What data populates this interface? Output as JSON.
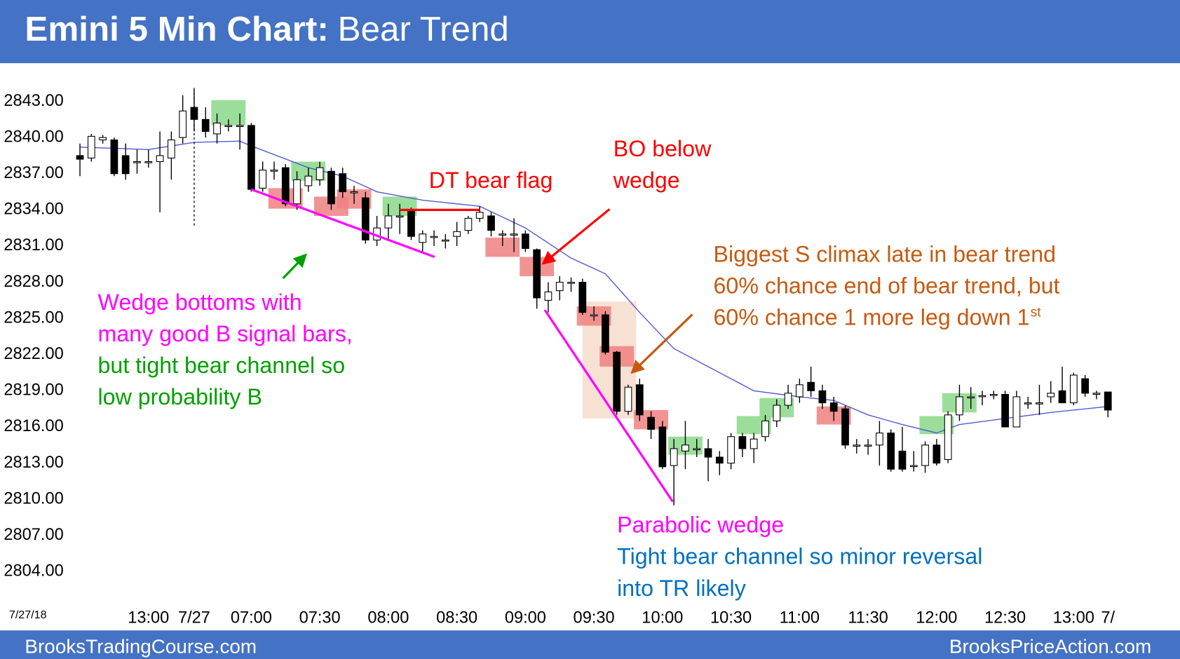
{
  "header": {
    "title_bold": "Emini 5 Min Chart:",
    "title_rest": "Bear Trend"
  },
  "footer": {
    "left": "BrooksTradingCourse.com",
    "right": "BrooksPriceAction.com"
  },
  "chart_data": {
    "type": "candlestick",
    "date_label": "7/27/18",
    "up_color": "#ffffff",
    "down_color": "#000000",
    "wick_color": "#000000",
    "xlim": [
      -7,
      91.5
    ],
    "ylim": [
      2801.5,
      2846.1
    ],
    "grid": false,
    "yticks": [
      {
        "value": 2804,
        "label": "2804.00"
      },
      {
        "value": 2807,
        "label": "2807.00"
      },
      {
        "value": 2810,
        "label": "2810.00"
      },
      {
        "value": 2813,
        "label": "2813.00"
      },
      {
        "value": 2816,
        "label": "2816.00"
      },
      {
        "value": 2819,
        "label": "2819.00"
      },
      {
        "value": 2822,
        "label": "2822.00"
      },
      {
        "value": 2825,
        "label": "2825.00"
      },
      {
        "value": 2828,
        "label": "2828.00"
      },
      {
        "value": 2831,
        "label": "2831.00"
      },
      {
        "value": 2834,
        "label": "2834.00"
      },
      {
        "value": 2837,
        "label": "2837.00"
      },
      {
        "value": 2840,
        "label": "2840.00"
      },
      {
        "value": 2843,
        "label": "2843.00"
      }
    ],
    "xticks": [
      {
        "value": 6,
        "label": "13:00"
      },
      {
        "value": 10,
        "label": "7/27"
      },
      {
        "value": 15,
        "label": "07:00"
      },
      {
        "value": 21,
        "label": "07:30"
      },
      {
        "value": 27,
        "label": "08:00"
      },
      {
        "value": 33,
        "label": "08:30"
      },
      {
        "value": 39,
        "label": "09:00"
      },
      {
        "value": 45,
        "label": "09:30"
      },
      {
        "value": 51,
        "label": "10:00"
      },
      {
        "value": 57,
        "label": "10:30"
      },
      {
        "value": 63,
        "label": "11:00"
      },
      {
        "value": 69,
        "label": "11:30"
      },
      {
        "value": 75,
        "label": "12:00"
      },
      {
        "value": 81,
        "label": "12:30"
      },
      {
        "value": 87,
        "label": "13:00"
      },
      {
        "value": 90,
        "label": "7/"
      }
    ],
    "candles": {
      "x": [
        0,
        1,
        2,
        3,
        4,
        5,
        6,
        7,
        8,
        9,
        10,
        11,
        12,
        13,
        14,
        15,
        16,
        17,
        18,
        19,
        20,
        21,
        22,
        23,
        24,
        25,
        26,
        27,
        28,
        29,
        30,
        31,
        32,
        33,
        34,
        35,
        36,
        37,
        38,
        39,
        40,
        41,
        42,
        43,
        44,
        45,
        46,
        47,
        48,
        49,
        50,
        51,
        52,
        53,
        54,
        55,
        56,
        57,
        58,
        59,
        60,
        61,
        62,
        63,
        64,
        65,
        66,
        67,
        68,
        69,
        70,
        71,
        72,
        73,
        74,
        75,
        76,
        77,
        78,
        79,
        80,
        81,
        82,
        83,
        84,
        85,
        86,
        87,
        88,
        89,
        90
      ],
      "open": [
        2838.5,
        2838.3,
        2839.8,
        2839.8,
        2838.5,
        2838,
        2838,
        2838,
        2838.3,
        2840,
        2842.5,
        2841.5,
        2840.3,
        2841,
        2841,
        2841,
        2835.8,
        2837.3,
        2837.5,
        2834.5,
        2836,
        2836.5,
        2837.2,
        2837,
        2835.5,
        2835,
        2831.5,
        2832.5,
        2833.5,
        2834,
        2831.3,
        2831.8,
        2831.5,
        2831.8,
        2832.3,
        2833.3,
        2833.5,
        2832,
        2832,
        2832,
        2830.7,
        2826.5,
        2827.3,
        2828,
        2828,
        2825.3,
        2825.3,
        2822.2,
        2817.3,
        2819.5,
        2816.8,
        2816,
        2812.8,
        2814,
        2814.2,
        2814.2,
        2813.5,
        2813,
        2815.2,
        2814.2,
        2815.2,
        2816.5,
        2817.8,
        2818.5,
        2819.7,
        2819,
        2818,
        2817.5,
        2814.5,
        2814.5,
        2814.5,
        2815.5,
        2814,
        2812.8,
        2812.8,
        2814.5,
        2813.3,
        2817,
        2818.5,
        2818.6,
        2818.7,
        2818.7,
        2816,
        2818,
        2818,
        2818.5,
        2819,
        2818,
        2820,
        2818.8,
        2818.9
      ],
      "high": [
        2839.5,
        2840.3,
        2840.2,
        2840,
        2839.5,
        2839,
        2839,
        2840.5,
        2840.5,
        2843.5,
        2844,
        2842.5,
        2842,
        2841.5,
        2842,
        2841.2,
        2838,
        2838,
        2837.8,
        2837.2,
        2837.5,
        2838,
        2837.5,
        2837.5,
        2836,
        2835.5,
        2833.5,
        2834.5,
        2834.5,
        2834.2,
        2832.3,
        2832.3,
        2832,
        2833,
        2833.5,
        2834.3,
        2833.8,
        2832.3,
        2833.3,
        2832.3,
        2830.8,
        2828,
        2828.5,
        2828.4,
        2828.3,
        2826,
        2825.6,
        2822.3,
        2819.5,
        2820,
        2817.3,
        2816.5,
        2815,
        2816.5,
        2815,
        2815,
        2814,
        2815.5,
        2815.5,
        2815.5,
        2817,
        2818.3,
        2819.5,
        2820,
        2821,
        2819.5,
        2818.5,
        2817.8,
        2815,
        2815,
        2816.5,
        2815.8,
        2816,
        2814,
        2814.8,
        2815,
        2817.3,
        2819.5,
        2819.3,
        2819,
        2819,
        2819,
        2819,
        2818.5,
        2819.5,
        2819.8,
        2821,
        2820.5,
        2820.3,
        2819,
        2818.9
      ],
      "low": [
        2836.8,
        2838,
        2839.5,
        2836.8,
        2836.5,
        2837,
        2837.5,
        2833.8,
        2836.5,
        2839.5,
        2840.5,
        2840,
        2839.5,
        2840.5,
        2839,
        2835.5,
        2835.5,
        2836.5,
        2834.3,
        2834,
        2835.5,
        2836,
        2834,
        2835,
        2834.5,
        2831.2,
        2831,
        2831.5,
        2832,
        2831.5,
        2830.5,
        2831,
        2830.8,
        2831,
        2832,
        2833,
        2831.8,
        2831,
        2830.5,
        2830.5,
        2825.8,
        2825.5,
        2826.5,
        2827.2,
        2825.3,
        2824.8,
        2822,
        2817,
        2817,
        2816.5,
        2815,
        2812.5,
        2809.5,
        2812.5,
        2813.5,
        2811.5,
        2812,
        2812.5,
        2813.5,
        2813,
        2814.8,
        2816,
        2817.5,
        2818,
        2818.5,
        2817.5,
        2816.5,
        2814.2,
        2813.8,
        2813.7,
        2812.8,
        2812.3,
        2812.3,
        2812.3,
        2812.2,
        2812.8,
        2813,
        2816.5,
        2817.5,
        2817.8,
        2818.3,
        2816,
        2816,
        2817.5,
        2817,
        2818,
        2818,
        2817.8,
        2818.5,
        2818.3,
        2816.8
      ],
      "close": [
        2838.2,
        2840.1,
        2840.0,
        2837,
        2837,
        2838,
        2838,
        2838.5,
        2839.8,
        2842.2,
        2841.5,
        2840.5,
        2841.2,
        2841,
        2841,
        2835.7,
        2837.3,
        2837.3,
        2834.5,
        2836.5,
        2836.8,
        2837.5,
        2834.5,
        2835.5,
        2835.5,
        2831.5,
        2832.5,
        2833.5,
        2833.5,
        2831.8,
        2832,
        2831.8,
        2831.5,
        2832.2,
        2833.3,
        2833.8,
        2832.3,
        2832,
        2832,
        2830.8,
        2826.7,
        2827.2,
        2828,
        2828,
        2825.5,
        2825.3,
        2822.2,
        2817.3,
        2819.3,
        2817,
        2815.8,
        2812.7,
        2814.2,
        2814.5,
        2814.2,
        2813.5,
        2813,
        2815.2,
        2814.2,
        2815,
        2816.5,
        2817.8,
        2818.8,
        2819.5,
        2819,
        2818,
        2817.3,
        2814.5,
        2814.5,
        2814.5,
        2815.5,
        2812.5,
        2812.5,
        2812.8,
        2814.5,
        2813,
        2817,
        2818.5,
        2818.5,
        2818.6,
        2818.7,
        2816,
        2818.5,
        2818,
        2818,
        2818.8,
        2818,
        2820.3,
        2818.8,
        2818.8,
        2817.4
      ]
    },
    "moving_average": {
      "color": "#4f5bd5",
      "x": [
        0,
        6,
        10,
        14,
        15,
        20,
        23,
        26,
        30,
        35,
        39,
        43,
        46,
        49,
        52,
        56,
        59,
        63,
        66,
        69,
        72,
        75,
        77,
        81,
        85,
        90
      ],
      "values": [
        2839.2,
        2839,
        2839.6,
        2839.7,
        2839.3,
        2837.5,
        2836.8,
        2835.5,
        2834.8,
        2834.3,
        2832.5,
        2830,
        2828.7,
        2825.5,
        2822.5,
        2820.5,
        2819,
        2818.5,
        2818.2,
        2817,
        2816.2,
        2815.5,
        2816.2,
        2816.7,
        2817.2,
        2817.7
      ]
    },
    "overlays": [
      {
        "type": "box",
        "x": [
          44.5,
          48.2
        ],
        "y": [
          2816.7,
          2826.4
        ],
        "color": "#f4dccb"
      },
      {
        "type": "box",
        "x": [
          12,
          14
        ],
        "y": [
          2841,
          2843.1
        ],
        "color": "#88d888"
      },
      {
        "type": "box",
        "x": [
          19,
          21
        ],
        "y": [
          2836.4,
          2838
        ],
        "color": "#88d888"
      },
      {
        "type": "box",
        "x": [
          17,
          19
        ],
        "y": [
          2834.1,
          2835.8
        ],
        "color": "#f08080"
      },
      {
        "type": "box",
        "x": [
          21,
          23
        ],
        "y": [
          2833.5,
          2835.1
        ],
        "color": "#f08080"
      },
      {
        "type": "box",
        "x": [
          23,
          25
        ],
        "y": [
          2834.1,
          2835.7
        ],
        "color": "#f08080"
      },
      {
        "type": "box",
        "x": [
          27,
          29
        ],
        "y": [
          2833.5,
          2835.1
        ],
        "color": "#88d888"
      },
      {
        "type": "box",
        "x": [
          36,
          38
        ],
        "y": [
          2830.1,
          2831.7
        ],
        "color": "#f08080"
      },
      {
        "type": "box",
        "x": [
          39,
          41
        ],
        "y": [
          2828.5,
          2830.1
        ],
        "color": "#f08080"
      },
      {
        "type": "box",
        "x": [
          44,
          46
        ],
        "y": [
          2824.4,
          2826
        ],
        "color": "#f08080"
      },
      {
        "type": "box",
        "x": [
          46,
          48
        ],
        "y": [
          2821,
          2822.7
        ],
        "color": "#f08080"
      },
      {
        "type": "box",
        "x": [
          49,
          51
        ],
        "y": [
          2815.8,
          2817.4
        ],
        "color": "#f08080"
      },
      {
        "type": "box",
        "x": [
          52,
          54
        ],
        "y": [
          2813.7,
          2815.2
        ],
        "color": "#88d888"
      },
      {
        "type": "box",
        "x": [
          58,
          60
        ],
        "y": [
          2815.4,
          2816.9
        ],
        "color": "#88d888"
      },
      {
        "type": "box",
        "x": [
          60,
          62
        ],
        "y": [
          2816.8,
          2818.4
        ],
        "color": "#88d888"
      },
      {
        "type": "box",
        "x": [
          65,
          67
        ],
        "y": [
          2816.2,
          2817.7
        ],
        "color": "#f08080"
      },
      {
        "type": "box",
        "x": [
          74,
          76
        ],
        "y": [
          2815.4,
          2816.9
        ],
        "color": "#88d888"
      },
      {
        "type": "box",
        "x": [
          76,
          78
        ],
        "y": [
          2817.2,
          2818.8
        ],
        "color": "#88d888"
      },
      {
        "type": "line",
        "x": [
          10,
          10
        ],
        "y": [
          2832.7,
          2844.2
        ],
        "color": "#000000",
        "dashed": true
      },
      {
        "type": "line",
        "x": [
          15,
          31.05
        ],
        "y": [
          2835.7,
          2830.1
        ],
        "color": "#ff00ff",
        "dashed": false
      },
      {
        "type": "line",
        "x": [
          40.7,
          51.9
        ],
        "y": [
          2825.7,
          2809.8
        ],
        "color": "#ff00ff",
        "dashed": false
      },
      {
        "type": "line",
        "x": [
          28,
          35
        ],
        "y": [
          2834,
          2834
        ],
        "color": "#ff0000",
        "dashed": false
      }
    ],
    "annotations": [
      {
        "text": "DT bear flag",
        "color": "#ff0000"
      },
      {
        "text": "BO below",
        "color": "#ff0000"
      },
      {
        "text": "wedge",
        "color": "#ff0000"
      },
      {
        "text": "Biggest S climax late in bear trend",
        "color": "#c55a11"
      },
      {
        "text": "60% chance end of bear trend, but",
        "color": "#c55a11"
      },
      {
        "text": "60% chance 1 more leg down 1",
        "color": "#c55a11"
      },
      {
        "text": "st",
        "color": "#c55a11"
      },
      {
        "text": "Wedge bottoms with",
        "color": "#ff00ff"
      },
      {
        "text": "many good B signal bars,",
        "color": "#ff00ff"
      },
      {
        "text": "but tight bear channel so",
        "color": "#00a000"
      },
      {
        "text": "low probability B",
        "color": "#00a000"
      },
      {
        "text": "Parabolic wedge",
        "color": "#ff00ff"
      },
      {
        "text": "Tight bear channel so minor reversal",
        "color": "#0070c0"
      },
      {
        "text": "into TR likely",
        "color": "#0070c0"
      }
    ]
  }
}
